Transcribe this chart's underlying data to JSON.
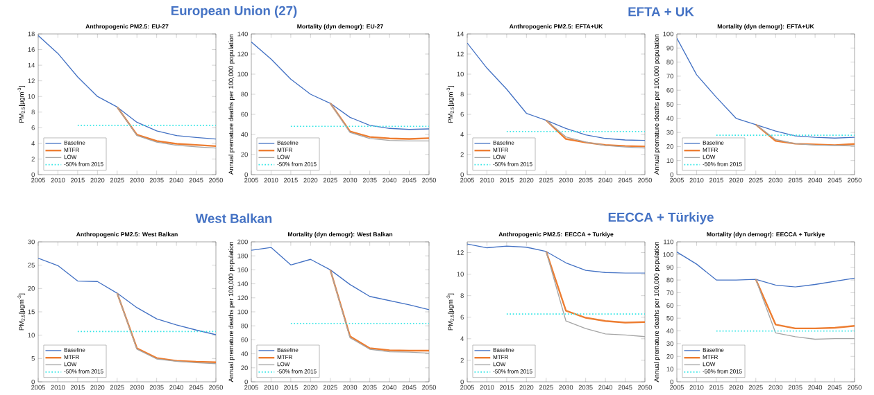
{
  "chart_data": [
    {
      "type": "line",
      "annotations": [
        "European Union (27)"
      ],
      "title": "Anthropogenic PM2.5: EU-27",
      "ylabel": "PM$_{2.5}$[μgm$^{-3}$]",
      "x": [
        2005,
        2010,
        2015,
        2020,
        2025,
        2030,
        2035,
        2040,
        2045,
        2050
      ],
      "xlim": [
        2005,
        2050
      ],
      "xticks": [
        2005,
        2010,
        2015,
        2020,
        2025,
        2030,
        2035,
        2040,
        2045,
        2050
      ],
      "ylim": [
        0,
        18
      ],
      "yticks": [
        0,
        2,
        4,
        6,
        8,
        10,
        12,
        14,
        16,
        18
      ],
      "legend": "bottom left",
      "series": [
        {
          "name": "Baseline",
          "color": "#4472c4",
          "values": [
            17.8,
            15.5,
            12.5,
            10.0,
            8.65,
            6.7,
            5.6,
            5.0,
            4.75,
            4.55
          ]
        },
        {
          "name": "MTFR",
          "color": "#ed7d31",
          "x": [
            2025,
            2030,
            2035,
            2040,
            2045,
            2050
          ],
          "values": [
            8.65,
            5.1,
            4.3,
            3.95,
            3.8,
            3.65
          ]
        },
        {
          "name": "LOW",
          "color": "#a5a5a5",
          "x": [
            2025,
            2030,
            2035,
            2040,
            2045,
            2050
          ],
          "values": [
            8.65,
            5.0,
            4.15,
            3.75,
            3.55,
            3.4
          ]
        },
        {
          "name": "-50% from 2015",
          "color": "#33e6e6",
          "line_style": "dotted",
          "x": [
            2015,
            2050
          ],
          "values": [
            6.3,
            6.3
          ]
        }
      ]
    },
    {
      "type": "line",
      "title": "Mortality (dyn demogr): EU-27",
      "ylabel": "Annual premature deaths per 100,000 population",
      "x": [
        2005,
        2010,
        2015,
        2020,
        2025,
        2030,
        2035,
        2040,
        2045,
        2050
      ],
      "xlim": [
        2005,
        2050
      ],
      "xticks": [
        2005,
        2010,
        2015,
        2020,
        2025,
        2030,
        2035,
        2040,
        2045,
        2050
      ],
      "ylim": [
        0,
        140
      ],
      "yticks": [
        0,
        20,
        40,
        60,
        80,
        100,
        120,
        140
      ],
      "legend": "bottom left",
      "series": [
        {
          "name": "Baseline",
          "color": "#4472c4",
          "values": [
            132,
            115,
            95,
            80,
            71,
            57,
            49,
            46,
            45,
            45.5
          ]
        },
        {
          "name": "MTFR",
          "color": "#ed7d31",
          "x": [
            2025,
            2030,
            2035,
            2040,
            2045,
            2050
          ],
          "values": [
            71,
            43,
            37.5,
            36,
            35.5,
            36.3
          ]
        },
        {
          "name": "LOW",
          "color": "#a5a5a5",
          "x": [
            2025,
            2030,
            2035,
            2040,
            2045,
            2050
          ],
          "values": [
            71,
            42,
            36,
            34,
            33.5,
            33.5
          ]
        },
        {
          "name": "-50% from 2015",
          "color": "#33e6e6",
          "line_style": "dotted",
          "x": [
            2015,
            2050
          ],
          "values": [
            48,
            48
          ]
        }
      ]
    },
    {
      "type": "line",
      "annotations": [
        "EFTA + UK"
      ],
      "title": "Anthropogenic PM2.5: EFTA+UK",
      "ylabel": "PM$_{2.5}$[μgm$^{-3}$]",
      "x": [
        2005,
        2010,
        2015,
        2020,
        2025,
        2030,
        2035,
        2040,
        2045,
        2050
      ],
      "xlim": [
        2005,
        2050
      ],
      "xticks": [
        2005,
        2010,
        2015,
        2020,
        2025,
        2030,
        2035,
        2040,
        2045,
        2050
      ],
      "ylim": [
        0,
        14
      ],
      "yticks": [
        0,
        2,
        4,
        6,
        8,
        10,
        12,
        14
      ],
      "legend": "bottom left",
      "series": [
        {
          "name": "Baseline",
          "color": "#4472c4",
          "values": [
            13.1,
            10.6,
            8.5,
            6.1,
            5.4,
            4.6,
            3.95,
            3.6,
            3.45,
            3.4
          ]
        },
        {
          "name": "MTFR",
          "color": "#ed7d31",
          "x": [
            2025,
            2030,
            2035,
            2040,
            2045,
            2050
          ],
          "values": [
            5.4,
            3.55,
            3.2,
            2.95,
            2.85,
            2.8
          ]
        },
        {
          "name": "LOW",
          "color": "#a5a5a5",
          "x": [
            2025,
            2030,
            2035,
            2040,
            2045,
            2050
          ],
          "values": [
            5.4,
            3.75,
            3.25,
            2.9,
            2.75,
            2.65
          ]
        },
        {
          "name": "-50% from 2015",
          "color": "#33e6e6",
          "line_style": "dotted",
          "x": [
            2015,
            2050
          ],
          "values": [
            4.3,
            4.3
          ]
        }
      ]
    },
    {
      "type": "line",
      "title": "Mortality (dyn demogr): EFTA+UK",
      "ylabel": "Annual premature deaths per 100,000 population",
      "x": [
        2005,
        2010,
        2015,
        2020,
        2025,
        2030,
        2035,
        2040,
        2045,
        2050
      ],
      "xlim": [
        2005,
        2050
      ],
      "xticks": [
        2005,
        2010,
        2015,
        2020,
        2025,
        2030,
        2035,
        2040,
        2045,
        2050
      ],
      "ylim": [
        0,
        100
      ],
      "yticks": [
        0,
        10,
        20,
        30,
        40,
        50,
        60,
        70,
        80,
        90,
        100
      ],
      "legend": "bottom left",
      "series": [
        {
          "name": "Baseline",
          "color": "#4472c4",
          "values": [
            97,
            71,
            55,
            40,
            35.5,
            31,
            27.5,
            26.5,
            26,
            26.5
          ]
        },
        {
          "name": "MTFR",
          "color": "#ed7d31",
          "x": [
            2025,
            2030,
            2035,
            2040,
            2045,
            2050
          ],
          "values": [
            35.5,
            24,
            22,
            21.5,
            21,
            21.8
          ]
        },
        {
          "name": "LOW",
          "color": "#a5a5a5",
          "x": [
            2025,
            2030,
            2035,
            2040,
            2045,
            2050
          ],
          "values": [
            35.5,
            25,
            22,
            21,
            20.8,
            20.3
          ]
        },
        {
          "name": "-50% from 2015",
          "color": "#33e6e6",
          "line_style": "dotted",
          "x": [
            2015,
            2050
          ],
          "values": [
            28,
            28
          ]
        }
      ]
    },
    {
      "type": "line",
      "annotations": [
        "West Balkan"
      ],
      "title": "Anthropogenic PM2.5: West Balkan",
      "ylabel": "PM$_{2.5}$[μgm$^{-3}$]",
      "x": [
        2005,
        2010,
        2015,
        2020,
        2025,
        2030,
        2035,
        2040,
        2045,
        2050
      ],
      "xlim": [
        2005,
        2050
      ],
      "xticks": [
        2005,
        2010,
        2015,
        2020,
        2025,
        2030,
        2035,
        2040,
        2045,
        2050
      ],
      "ylim": [
        0,
        30
      ],
      "yticks": [
        0,
        5,
        10,
        15,
        20,
        25,
        30
      ],
      "legend": "bottom left",
      "series": [
        {
          "name": "Baseline",
          "color": "#4472c4",
          "values": [
            26.5,
            24.9,
            21.6,
            21.5,
            19.0,
            15.9,
            13.5,
            12.2,
            11.1,
            10.1
          ]
        },
        {
          "name": "MTFR",
          "color": "#ed7d31",
          "x": [
            2025,
            2030,
            2035,
            2040,
            2045,
            2050
          ],
          "values": [
            19.0,
            7.2,
            5.1,
            4.5,
            4.3,
            4.2
          ]
        },
        {
          "name": "LOW",
          "color": "#a5a5a5",
          "x": [
            2025,
            2030,
            2035,
            2040,
            2045,
            2050
          ],
          "values": [
            19.0,
            7.0,
            4.9,
            4.4,
            4.1,
            3.9
          ]
        },
        {
          "name": "-50% from 2015",
          "color": "#33e6e6",
          "line_style": "dotted",
          "x": [
            2015,
            2050
          ],
          "values": [
            10.8,
            10.8
          ]
        }
      ]
    },
    {
      "type": "line",
      "title": "Mortality (dyn demogr): West Balkan",
      "ylabel": "Annual premature deaths per 100,000 population",
      "x": [
        2005,
        2010,
        2015,
        2020,
        2025,
        2030,
        2035,
        2040,
        2045,
        2050
      ],
      "xlim": [
        2005,
        2050
      ],
      "xticks": [
        2005,
        2010,
        2015,
        2020,
        2025,
        2030,
        2035,
        2040,
        2045,
        2050
      ],
      "ylim": [
        0,
        200
      ],
      "yticks": [
        0,
        20,
        40,
        60,
        80,
        100,
        120,
        140,
        160,
        180,
        200
      ],
      "legend": "bottom left",
      "series": [
        {
          "name": "Baseline",
          "color": "#4472c4",
          "values": [
            188,
            192,
            167,
            175,
            160,
            139,
            122,
            116,
            110,
            103
          ]
        },
        {
          "name": "MTFR",
          "color": "#ed7d31",
          "x": [
            2025,
            2030,
            2035,
            2040,
            2045,
            2050
          ],
          "values": [
            160,
            65,
            48,
            45,
            44.5,
            44.5
          ]
        },
        {
          "name": "LOW",
          "color": "#a5a5a5",
          "x": [
            2025,
            2030,
            2035,
            2040,
            2045,
            2050
          ],
          "values": [
            160,
            63,
            46.5,
            43,
            42.5,
            41
          ]
        },
        {
          "name": "-50% from 2015",
          "color": "#33e6e6",
          "line_style": "dotted",
          "x": [
            2015,
            2050
          ],
          "values": [
            83.5,
            83.5
          ]
        }
      ]
    },
    {
      "type": "line",
      "annotations": [
        "EECCA + Türkiye"
      ],
      "title": "Anthropogenic PM2.5: EECCA + Turkiye",
      "ylabel": "PM$_{2.5}$[μgm$^{-3}$]",
      "x": [
        2005,
        2010,
        2015,
        2020,
        2025,
        2030,
        2035,
        2040,
        2045,
        2050
      ],
      "xlim": [
        2005,
        2050
      ],
      "xticks": [
        2005,
        2010,
        2015,
        2020,
        2025,
        2030,
        2035,
        2040,
        2045,
        2050
      ],
      "ylim": [
        0,
        13
      ],
      "yticks": [
        0,
        2,
        4,
        6,
        8,
        10,
        12
      ],
      "legend": "bottom left",
      "series": [
        {
          "name": "Baseline",
          "color": "#4472c4",
          "values": [
            12.8,
            12.45,
            12.6,
            12.5,
            12.1,
            11.05,
            10.35,
            10.15,
            10.1,
            10.1
          ]
        },
        {
          "name": "MTFR",
          "color": "#ed7d31",
          "x": [
            2025,
            2030,
            2035,
            2040,
            2045,
            2050
          ],
          "values": [
            12.1,
            6.6,
            5.95,
            5.65,
            5.5,
            5.55
          ]
        },
        {
          "name": "LOW",
          "color": "#a5a5a5",
          "x": [
            2025,
            2030,
            2035,
            2040,
            2045,
            2050
          ],
          "values": [
            12.1,
            5.65,
            4.95,
            4.45,
            4.35,
            4.2
          ]
        },
        {
          "name": "-50% from 2015",
          "color": "#33e6e6",
          "line_style": "dotted",
          "x": [
            2015,
            2050
          ],
          "values": [
            6.3,
            6.3
          ]
        }
      ]
    },
    {
      "type": "line",
      "title": "Mortality (dyn demogr): EECCA + Turkiye",
      "ylabel": "Annual premature deaths per 100,000 population",
      "x": [
        2005,
        2010,
        2015,
        2020,
        2025,
        2030,
        2035,
        2040,
        2045,
        2050
      ],
      "xlim": [
        2005,
        2050
      ],
      "xticks": [
        2005,
        2010,
        2015,
        2020,
        2025,
        2030,
        2035,
        2040,
        2045,
        2050
      ],
      "ylim": [
        0,
        110
      ],
      "yticks": [
        0,
        10,
        20,
        30,
        40,
        50,
        60,
        70,
        80,
        90,
        100,
        110
      ],
      "legend": "bottom left",
      "series": [
        {
          "name": "Baseline",
          "color": "#4472c4",
          "values": [
            102,
            92.5,
            80,
            80,
            80.5,
            76,
            74.5,
            76.5,
            79,
            81.5
          ]
        },
        {
          "name": "MTFR",
          "color": "#ed7d31",
          "x": [
            2025,
            2030,
            2035,
            2040,
            2045,
            2050
          ],
          "values": [
            80.5,
            45,
            42,
            42,
            42.5,
            44
          ]
        },
        {
          "name": "LOW",
          "color": "#a5a5a5",
          "x": [
            2025,
            2030,
            2035,
            2040,
            2045,
            2050
          ],
          "values": [
            80.5,
            38.5,
            35.5,
            33.5,
            34,
            34
          ]
        },
        {
          "name": "-50% from 2015",
          "color": "#33e6e6",
          "line_style": "dotted",
          "x": [
            2015,
            2050
          ],
          "values": [
            40,
            40
          ]
        }
      ]
    }
  ]
}
